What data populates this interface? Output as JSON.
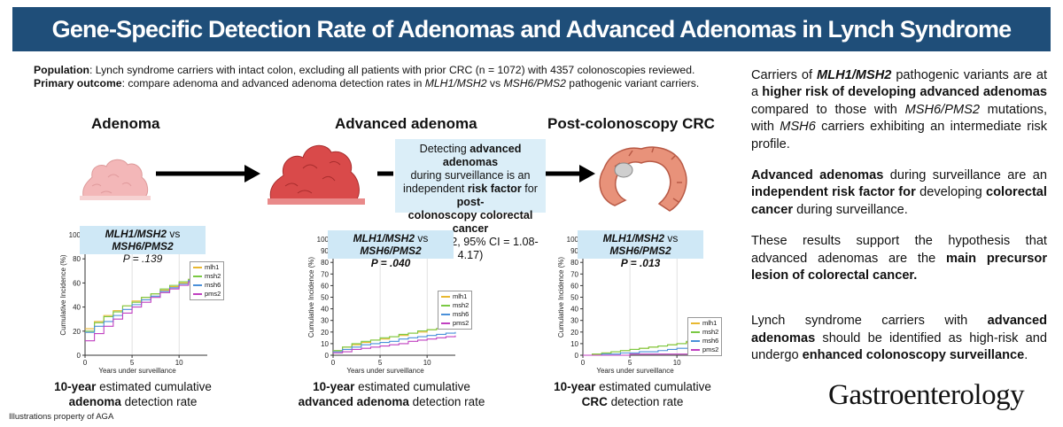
{
  "title": "Gene-Specific Detection Rate of Adenomas and Advanced Adenomas in Lynch Syndrome",
  "population": {
    "label": "Population",
    "text": ": Lynch syndrome carriers with intact colon, excluding all patients with prior CRC (n = 1072) with 4357 colonoscopies reviewed."
  },
  "primary_outcome": {
    "label": "Primary outcome",
    "text_a": ": compare adenoma and advanced adenoma detection rates in ",
    "gene_a": "MLH1/MSH2",
    "text_b": " vs ",
    "gene_b": "MSH6/PMS2",
    "text_c": " pathogenic variant carriers."
  },
  "stages": [
    "Adenoma",
    "Advanced adenoma",
    "Post-colonoscopy CRC"
  ],
  "annotation": {
    "l1": "Detecting ",
    "b1": "advanced adenomas",
    "l2": "during surveillance is an",
    "l3a": "independent ",
    "b3": "risk factor",
    "l3b": " for ",
    "b4": "post-",
    "b5": "colonoscopy colorectal cancer",
    "l6": "(OR = 2.12, 95% CI = 1.08-4.17)"
  },
  "pbox": {
    "comparison_a": "MLH1/MSH2",
    "vs": " vs ",
    "comparison_b": "MSH6/PMS2"
  },
  "chart_data": [
    {
      "type": "line",
      "comparison": "MLH1/MSH2 vs MSH6/PMS2",
      "p_value": "P = .139",
      "xlabel": "Years under surveillance",
      "ylabel": "Cumulative Incidence (%)",
      "xlim": [
        0,
        13
      ],
      "ylim": [
        0,
        100
      ],
      "xticks": [
        0,
        5,
        10
      ],
      "yticks": [
        0,
        20,
        40,
        60,
        80,
        100
      ],
      "legend": "right",
      "series": [
        {
          "name": "mlh1",
          "color": "#e8b830",
          "x": [
            0,
            1,
            2,
            3,
            4,
            5,
            6,
            7,
            8,
            9,
            10,
            11,
            12,
            13
          ],
          "y": [
            22,
            28,
            33,
            37,
            41,
            45,
            48,
            51,
            54,
            57,
            60,
            63,
            65,
            67
          ]
        },
        {
          "name": "msh2",
          "color": "#7ac943",
          "x": [
            0,
            1,
            2,
            3,
            4,
            5,
            6,
            7,
            8,
            9,
            10,
            11,
            12,
            13
          ],
          "y": [
            20,
            27,
            32,
            36,
            41,
            44,
            48,
            51,
            55,
            58,
            61,
            63,
            65,
            67
          ]
        },
        {
          "name": "msh6",
          "color": "#4a90d9",
          "x": [
            0,
            1,
            2,
            3,
            4,
            5,
            6,
            7,
            8,
            9,
            10,
            11,
            12,
            13
          ],
          "y": [
            19,
            24,
            28,
            33,
            38,
            42,
            46,
            49,
            53,
            56,
            59,
            62,
            65,
            66
          ]
        },
        {
          "name": "pms2",
          "color": "#c040c0",
          "x": [
            0,
            1,
            2,
            3,
            4,
            5,
            6,
            7,
            8,
            9,
            10,
            11,
            12,
            13
          ],
          "y": [
            12,
            18,
            24,
            30,
            35,
            40,
            44,
            48,
            52,
            55,
            58,
            61,
            64,
            66
          ]
        }
      ]
    },
    {
      "type": "line",
      "comparison": "MLH1/MSH2 vs MSH6/PMS2",
      "p_value": "P = .040",
      "xlabel": "Years under surveillance",
      "ylabel": "Cumulative Incidence (%)",
      "xlim": [
        0,
        13
      ],
      "ylim": [
        0,
        100
      ],
      "xticks": [
        0,
        5,
        10
      ],
      "yticks": [
        0,
        10,
        20,
        30,
        40,
        50,
        60,
        70,
        80,
        90,
        100
      ],
      "legend": "right",
      "series": [
        {
          "name": "mlh1",
          "color": "#e8b830",
          "x": [
            0,
            1,
            2,
            3,
            4,
            5,
            6,
            7,
            8,
            9,
            10,
            11,
            12,
            13
          ],
          "y": [
            4,
            7,
            9,
            11,
            13,
            14,
            16,
            17,
            19,
            20,
            22,
            23,
            24,
            25
          ]
        },
        {
          "name": "msh2",
          "color": "#7ac943",
          "x": [
            0,
            1,
            2,
            3,
            4,
            5,
            6,
            7,
            8,
            9,
            10,
            11,
            12,
            13
          ],
          "y": [
            4,
            7,
            10,
            12,
            13,
            15,
            16,
            18,
            19,
            21,
            22,
            23,
            24,
            24
          ]
        },
        {
          "name": "msh6",
          "color": "#4a90d9",
          "x": [
            0,
            1,
            2,
            3,
            4,
            5,
            6,
            7,
            8,
            9,
            10,
            11,
            12,
            13
          ],
          "y": [
            3,
            5,
            7,
            9,
            10,
            11,
            12,
            14,
            15,
            16,
            17,
            18,
            19,
            20
          ]
        },
        {
          "name": "pms2",
          "color": "#c040c0",
          "x": [
            0,
            1,
            2,
            3,
            4,
            5,
            6,
            7,
            8,
            9,
            10,
            11,
            12,
            13
          ],
          "y": [
            2,
            3,
            5,
            6,
            7,
            8,
            9,
            10,
            12,
            13,
            14,
            15,
            16,
            17
          ]
        }
      ]
    },
    {
      "type": "line",
      "comparison": "MLH1/MSH2 vs MSH6/PMS2",
      "p_value": "P = .013",
      "xlabel": "Years under surveillance",
      "ylabel": "Cumulative Incidence (%)",
      "xlim": [
        0,
        13
      ],
      "ylim": [
        0,
        100
      ],
      "xticks": [
        0,
        5,
        10
      ],
      "yticks": [
        0,
        10,
        20,
        30,
        40,
        50,
        60,
        70,
        80,
        90,
        100
      ],
      "legend": "right",
      "series": [
        {
          "name": "mlh1",
          "color": "#e8b830",
          "x": [
            0,
            1,
            2,
            3,
            4,
            5,
            6,
            7,
            8,
            9,
            10,
            11,
            12,
            13
          ],
          "y": [
            0,
            1,
            2,
            3,
            4,
            5,
            6,
            7,
            8,
            9,
            10,
            11,
            12,
            13
          ]
        },
        {
          "name": "msh2",
          "color": "#7ac943",
          "x": [
            0,
            1,
            2,
            3,
            4,
            5,
            6,
            7,
            8,
            9,
            10,
            11,
            12,
            13
          ],
          "y": [
            0,
            1,
            2,
            3,
            4,
            5,
            6,
            7,
            8,
            9,
            10,
            12,
            14,
            16
          ]
        },
        {
          "name": "msh6",
          "color": "#4a90d9",
          "x": [
            0,
            1,
            2,
            3,
            4,
            5,
            6,
            7,
            8,
            9,
            10,
            11,
            12,
            13
          ],
          "y": [
            0,
            0,
            1,
            1,
            2,
            2,
            3,
            3,
            4,
            5,
            6,
            6,
            7,
            8
          ]
        },
        {
          "name": "pms2",
          "color": "#c040c0",
          "x": [
            0,
            1,
            2,
            3,
            4,
            5,
            6,
            7,
            8,
            9,
            10,
            11,
            12,
            13
          ],
          "y": [
            0,
            0,
            0,
            0,
            0,
            1,
            1,
            1,
            1,
            1,
            1,
            1,
            1,
            1
          ]
        }
      ]
    }
  ],
  "captions": [
    {
      "pre_bold": "10-year",
      "mid": " estimated cumulative",
      "line2_bold": "adenoma",
      "line2": " detection rate"
    },
    {
      "pre_bold": "10-year",
      "mid": " estimated cumulative",
      "line2_bold": "advanced adenoma",
      "line2": " detection rate"
    },
    {
      "pre_bold": "10-year",
      "mid": " estimated cumulative",
      "line2_bold": "CRC",
      "line2": " detection rate"
    }
  ],
  "right_panel": {
    "p1": {
      "a": "Carriers of ",
      "b": "MLH1/MSH2",
      "c": " pathogenic variants are at a ",
      "d": "higher risk of developing advanced adenomas",
      "e": " compared to those with ",
      "f": "MSH6/PMS2",
      "g": " mutations, with ",
      "h": "MSH6",
      "i": " carriers exhibiting an intermediate risk profile."
    },
    "p2": {
      "a": "Advanced adenomas",
      "b": " during surveillance are an ",
      "c": "independent risk factor for",
      "d": " developing ",
      "e": "colorectal cancer",
      "f": " during surveillance."
    },
    "p3": {
      "a": "These results support the hypothesis that advanced adenomas are the ",
      "b": "main precursor lesion of colorectal cancer."
    },
    "p4": {
      "a": "Lynch syndrome carriers with ",
      "b": "advanced adenomas",
      "c": " should be identified as high-risk and undergo ",
      "d": "enhanced colonoscopy surveillance",
      "e": "."
    }
  },
  "journal": "Gastroenterology",
  "footnote": "Illustrations property of AGA"
}
